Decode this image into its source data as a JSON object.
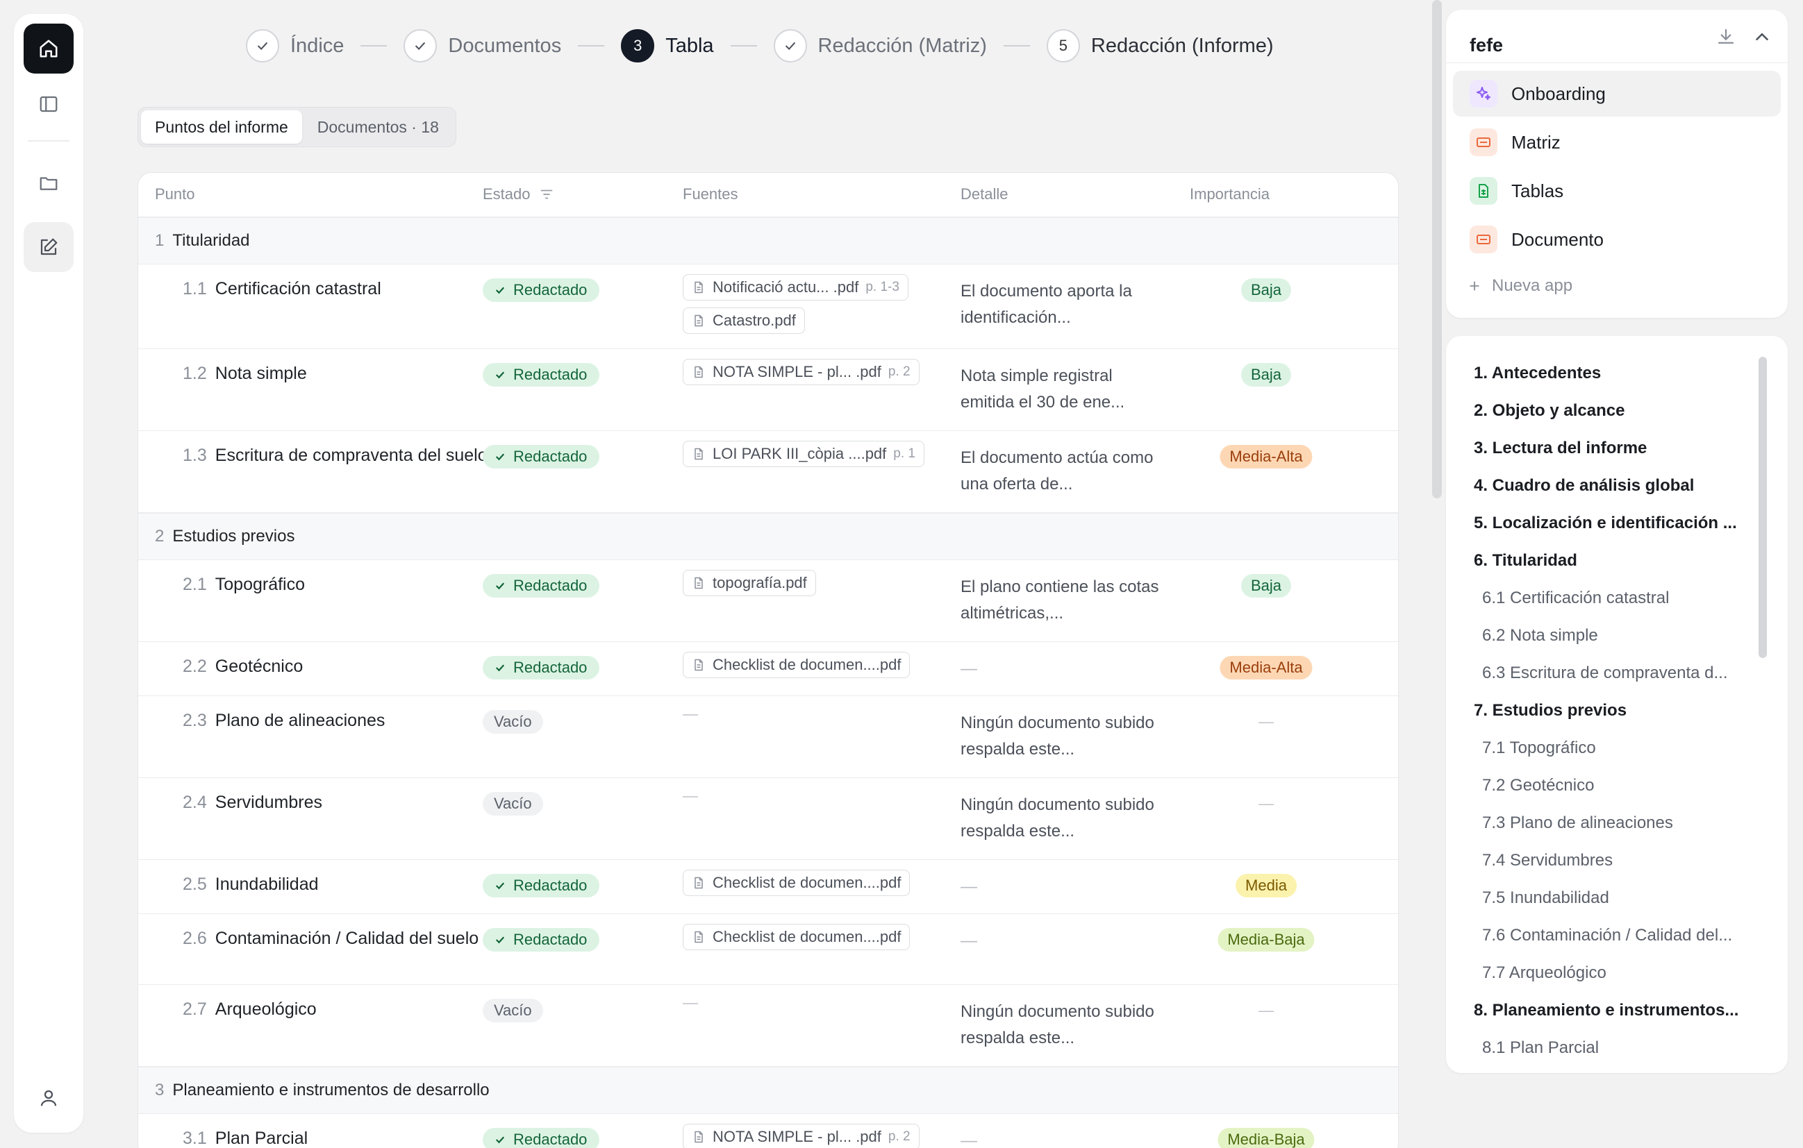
{
  "stepper": {
    "steps": [
      {
        "label": "Índice",
        "state": "done"
      },
      {
        "label": "Documentos",
        "state": "done"
      },
      {
        "label": "Tabla",
        "state": "active",
        "number": "3"
      },
      {
        "label": "Redacción (Matriz)",
        "state": "done"
      },
      {
        "label": "Redacción (Informe)",
        "state": "pending",
        "number": "5"
      }
    ]
  },
  "tabs": [
    {
      "label": "Puntos del informe",
      "active": true
    },
    {
      "label": "Documentos · 18",
      "active": false
    }
  ],
  "table": {
    "headers": {
      "punto": "Punto",
      "estado": "Estado",
      "fuentes": "Fuentes",
      "detalle": "Detalle",
      "importancia": "Importancia"
    },
    "groups": [
      {
        "num": "1",
        "title": "Titularidad"
      },
      {
        "num": "2",
        "title": "Estudios previos"
      },
      {
        "num": "3",
        "title": "Planeamiento e instrumentos de desarrollo"
      }
    ],
    "rows": [
      {
        "num": "1.1",
        "title": "Certificación catastral",
        "status": "Redactado",
        "sources": [
          {
            "name": "Notificació actu... .pdf",
            "page": "p. 1-3"
          },
          {
            "name": "Catastro.pdf",
            "page": ""
          }
        ],
        "detail": "El documento aporta la identificación...",
        "importance": "Baja"
      },
      {
        "num": "1.2",
        "title": "Nota simple",
        "status": "Redactado",
        "sources": [
          {
            "name": "NOTA SIMPLE - pl... .pdf",
            "page": "p. 2"
          }
        ],
        "detail": "Nota simple registral emitida el 30 de ene...",
        "importance": "Baja"
      },
      {
        "num": "1.3",
        "title": "Escritura de compraventa del suelo",
        "status": "Redactado",
        "sources": [
          {
            "name": "LOI PARK III_còpia ....pdf",
            "page": "p. 1"
          }
        ],
        "detail": "El documento actúa como una oferta de...",
        "importance": "Media-Alta"
      },
      {
        "num": "2.1",
        "title": "Topográfico",
        "status": "Redactado",
        "sources": [
          {
            "name": "topografía.pdf",
            "page": ""
          }
        ],
        "detail": "El plano contiene las cotas altimétricas,...",
        "importance": "Baja"
      },
      {
        "num": "2.2",
        "title": "Geotécnico",
        "status": "Redactado",
        "sources": [
          {
            "name": "Checklist de documen....pdf",
            "page": ""
          }
        ],
        "detail": "—",
        "importance": "Media-Alta"
      },
      {
        "num": "2.3",
        "title": "Plano de alineaciones",
        "status": "Vacío",
        "sources": [],
        "detail": "Ningún documento subido respalda este...",
        "importance": "—"
      },
      {
        "num": "2.4",
        "title": "Servidumbres",
        "status": "Vacío",
        "sources": [],
        "detail": "Ningún documento subido respalda este...",
        "importance": "—"
      },
      {
        "num": "2.5",
        "title": "Inundabilidad",
        "status": "Redactado",
        "sources": [
          {
            "name": "Checklist de documen....pdf",
            "page": ""
          }
        ],
        "detail": "—",
        "importance": "Media"
      },
      {
        "num": "2.6",
        "title": "Contaminación / Calidad del suelo",
        "status": "Redactado",
        "sources": [
          {
            "name": "Checklist de documen....pdf",
            "page": ""
          }
        ],
        "detail": "—",
        "importance": "Media-Baja"
      },
      {
        "num": "2.7",
        "title": "Arqueológico",
        "status": "Vacío",
        "sources": [],
        "detail": "Ningún documento subido respalda este...",
        "importance": "—"
      },
      {
        "num": "3.1",
        "title": "Plan Parcial",
        "status": "Redactado",
        "sources": [
          {
            "name": "NOTA SIMPLE - pl... .pdf",
            "page": "p. 2"
          }
        ],
        "detail": "—",
        "importance": "Media-Baja"
      }
    ]
  },
  "apps": {
    "title": "fefe",
    "items": [
      {
        "label": "Onboarding",
        "icon": "sparkle-icon",
        "color": "#8b5cf6",
        "bg": "#efe7fd"
      },
      {
        "label": "Matriz",
        "icon": "slides-icon",
        "color": "#ea6a3c",
        "bg": "#fde8df"
      },
      {
        "label": "Tablas",
        "icon": "sheet-icon",
        "color": "#16a34a",
        "bg": "#dcf3e4"
      },
      {
        "label": "Documento",
        "icon": "slides-icon",
        "color": "#ea6a3c",
        "bg": "#fde8df"
      }
    ],
    "new_app": "Nueva app"
  },
  "toc": [
    {
      "label": "1. Antecedentes",
      "level": 1
    },
    {
      "label": "2. Objeto y alcance",
      "level": 1
    },
    {
      "label": "3. Lectura del informe",
      "level": 1
    },
    {
      "label": "4. Cuadro de análisis global",
      "level": 1
    },
    {
      "label": "5. Localización e identificación ...",
      "level": 1
    },
    {
      "label": "6. Titularidad",
      "level": 1
    },
    {
      "label": "6.1 Certificación catastral",
      "level": 2
    },
    {
      "label": "6.2 Nota simple",
      "level": 2
    },
    {
      "label": "6.3 Escritura de compraventa d...",
      "level": 2
    },
    {
      "label": "7. Estudios previos",
      "level": 1
    },
    {
      "label": "7.1 Topográfico",
      "level": 2
    },
    {
      "label": "7.2 Geotécnico",
      "level": 2
    },
    {
      "label": "7.3 Plano de alineaciones",
      "level": 2
    },
    {
      "label": "7.4 Servidumbres",
      "level": 2
    },
    {
      "label": "7.5 Inundabilidad",
      "level": 2
    },
    {
      "label": "7.6 Contaminación / Calidad del...",
      "level": 2
    },
    {
      "label": "7.7 Arqueológico",
      "level": 2
    },
    {
      "label": "8. Planeamiento e instrumentos...",
      "level": 1
    },
    {
      "label": "8.1 Plan Parcial",
      "level": 2
    }
  ]
}
